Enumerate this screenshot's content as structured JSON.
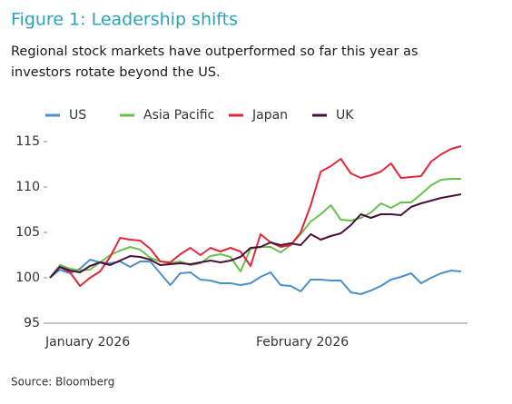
{
  "chart_data": {
    "type": "line",
    "title": "Figure 1: Leadership shifts",
    "subtitle": [
      "Regional stock markets have outperformed so far this year as",
      "investors rotate beyond the US."
    ],
    "source": "Source: Bloomberg",
    "legend": "top",
    "categories": [
      "January 2026",
      null,
      null,
      null,
      null,
      null,
      null,
      null,
      null,
      null,
      null,
      null,
      null,
      null,
      null,
      null,
      null,
      null,
      null,
      null,
      null,
      "February 2026",
      null,
      null,
      null,
      null,
      null,
      null,
      null,
      null,
      null,
      null,
      null,
      null,
      null,
      null,
      null,
      null,
      null,
      null,
      null,
      null
    ],
    "ylim": [
      95,
      115
    ],
    "yticks": [
      95,
      100,
      105,
      110,
      115
    ],
    "series": [
      {
        "name": "US",
        "color": "#4a90c9",
        "values": [
          100,
          100.9,
          100.5,
          101,
          102,
          101.7,
          101.6,
          101.8,
          101.2,
          101.8,
          101.8,
          100.5,
          99.2,
          100.5,
          100.6,
          99.8,
          99.7,
          99.4,
          99.4,
          99.2,
          99.4,
          100.1,
          100.6,
          99.2,
          99.1,
          98.5,
          99.8,
          99.8,
          99.7,
          99.7,
          98.4,
          98.2,
          98.6,
          99.1,
          99.8,
          100.1,
          100.5,
          99.4,
          100,
          100.5,
          100.8,
          100.7
        ]
      },
      {
        "name": "Asia Pacific",
        "color": "#6abf4b",
        "values": [
          100,
          101.4,
          101,
          100.8,
          100.9,
          101.7,
          102.5,
          103,
          103.4,
          103.1,
          102.2,
          101.8,
          101.6,
          101.8,
          101.4,
          101.6,
          102.4,
          102.6,
          102.3,
          100.7,
          103.2,
          103.4,
          103.4,
          102.8,
          103.6,
          104.8,
          106.2,
          107,
          108,
          106.4,
          106.3,
          106.6,
          107.2,
          108.2,
          107.7,
          108.3,
          108.3,
          109.2,
          110.2,
          110.8,
          110.9,
          110.9
        ]
      },
      {
        "name": "Japan",
        "color": "#e0283a",
        "values": [
          100,
          101.2,
          100.6,
          99.1,
          100,
          100.7,
          102.3,
          104.4,
          104.2,
          104.1,
          103.2,
          101.8,
          101.7,
          102.6,
          103.3,
          102.5,
          103.3,
          102.9,
          103.3,
          102.9,
          101.3,
          104.8,
          103.9,
          103.4,
          103.6,
          105,
          108,
          111.7,
          112.3,
          113.1,
          111.5,
          111,
          111.3,
          111.7,
          112.6,
          111,
          111.1,
          111.2,
          112.8,
          113.6,
          114.2,
          114.5
        ]
      },
      {
        "name": "UK",
        "color": "#4b0f3d",
        "values": [
          100,
          101.2,
          100.8,
          100.6,
          101.3,
          101.7,
          101.4,
          101.9,
          102.4,
          102.3,
          102,
          101.4,
          101.5,
          101.6,
          101.5,
          101.7,
          101.9,
          101.7,
          101.9,
          102.3,
          103.3,
          103.4,
          103.9,
          103.6,
          103.8,
          103.6,
          104.8,
          104.2,
          104.6,
          104.9,
          105.8,
          107,
          106.6,
          107,
          107,
          106.9,
          107.8,
          108.2,
          108.5,
          108.8,
          109,
          109.2
        ]
      }
    ]
  }
}
